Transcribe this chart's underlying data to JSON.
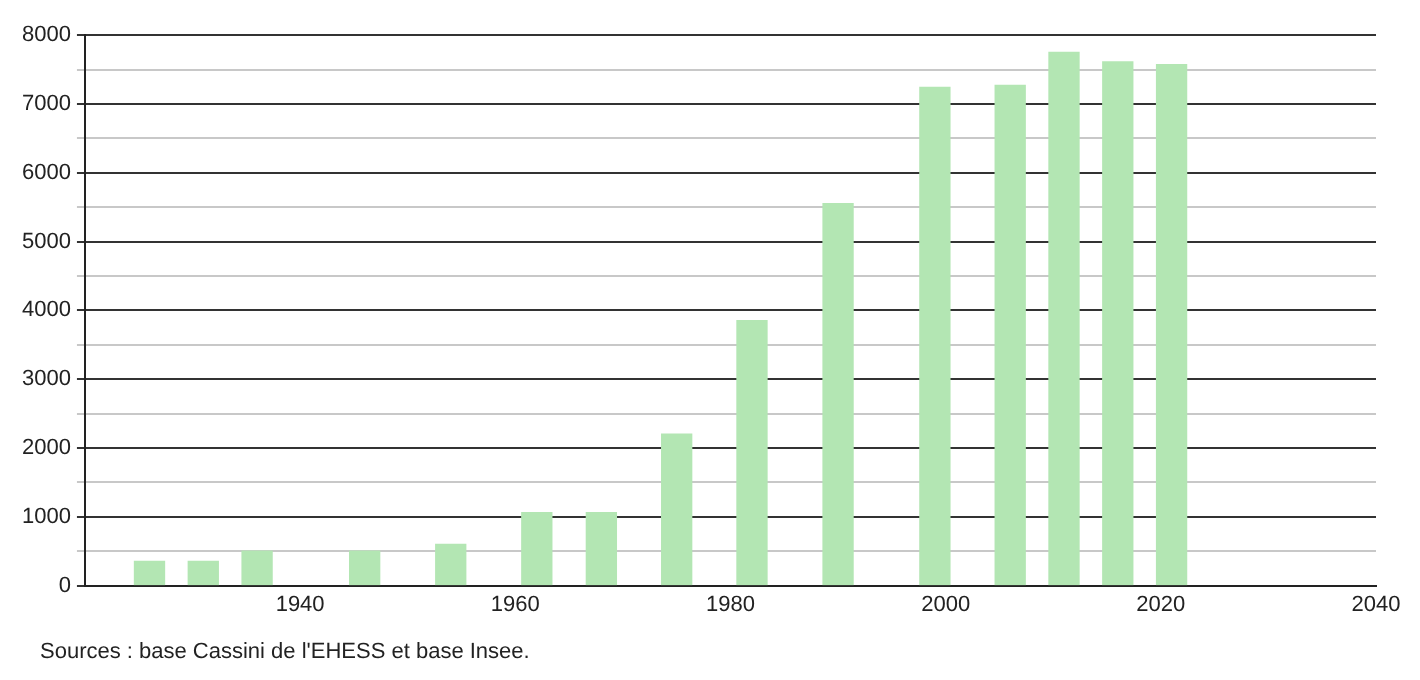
{
  "chart_data": {
    "type": "bar",
    "x": [
      1926,
      1931,
      1936,
      1946,
      1954,
      1962,
      1968,
      1975,
      1982,
      1990,
      1999,
      2006,
      2011,
      2016,
      2021
    ],
    "values": [
      350,
      350,
      500,
      500,
      600,
      1060,
      1060,
      2200,
      3850,
      5550,
      7240,
      7270,
      7750,
      7610,
      7570
    ],
    "color": "#b3e6b3",
    "xlim": [
      1920,
      2040
    ],
    "xticks": [
      1940,
      1960,
      1980,
      2000,
      2020,
      2040
    ],
    "ylim": [
      0,
      8000
    ],
    "yticks": [
      0,
      {
        "value": 500,
        "label": null
      },
      1000,
      {
        "value": 1500,
        "label": null
      },
      2000,
      {
        "value": 2500,
        "label": null
      },
      3000,
      {
        "value": 3500,
        "label": null
      },
      4000,
      {
        "value": 4500,
        "label": null
      },
      5000,
      {
        "value": 5500,
        "label": null
      },
      6000,
      {
        "value": 6500,
        "label": null
      },
      7000,
      {
        "value": 7500,
        "label": null
      },
      8000
    ],
    "grid": "y",
    "legend": false,
    "annotations": [
      "Sources : base Cassini de l'EHESS et base Insee."
    ]
  }
}
